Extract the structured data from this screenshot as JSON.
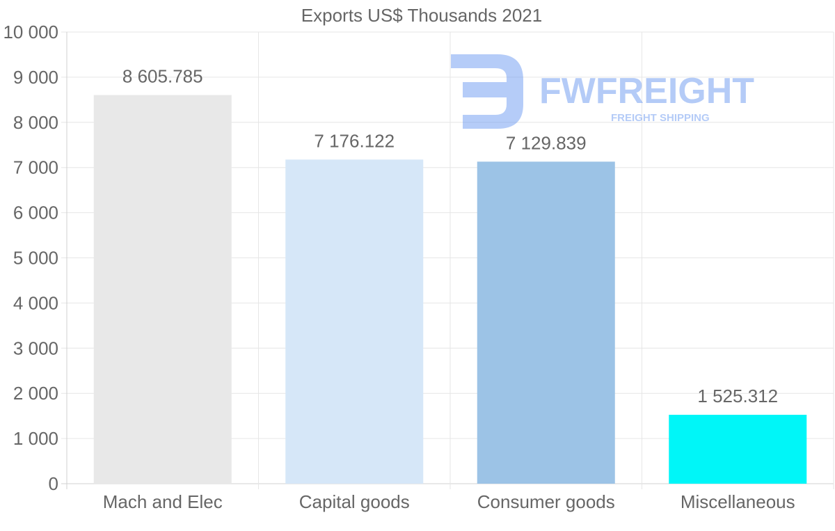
{
  "chart_data": {
    "type": "bar",
    "title": "Exports US$ Thousands 2021",
    "categories": [
      "Mach and Elec",
      "Capital goods",
      "Consumer goods",
      "Miscellaneous"
    ],
    "values": [
      8605.785,
      7176.122,
      7129.839,
      1525.312
    ],
    "value_labels": [
      "8 605.785",
      "7 176.122",
      "7 129.839",
      "1 525.312"
    ],
    "bar_colors": [
      "#e8e8e8",
      "#d6e7f8",
      "#9cc3e6",
      "#00f6f8"
    ],
    "ylim": [
      0,
      10000
    ],
    "yticks": [
      {
        "value": 0,
        "label": "0"
      },
      {
        "value": 1000,
        "label": "1 000"
      },
      {
        "value": 2000,
        "label": "2 000"
      },
      {
        "value": 3000,
        "label": "3 000"
      },
      {
        "value": 4000,
        "label": "4 000"
      },
      {
        "value": 5000,
        "label": "5 000"
      },
      {
        "value": 6000,
        "label": "6 000"
      },
      {
        "value": 7000,
        "label": "7 000"
      },
      {
        "value": 8000,
        "label": "8 000"
      },
      {
        "value": 9000,
        "label": "9 000"
      },
      {
        "value": 10000,
        "label": "10 000"
      }
    ],
    "xlabel": "",
    "ylabel": "",
    "grid": true,
    "legend": "none"
  },
  "watermark": {
    "brand": "FWFREIGHT",
    "tagline": "FREIGHT SHIPPING",
    "color": "#5b8def"
  }
}
